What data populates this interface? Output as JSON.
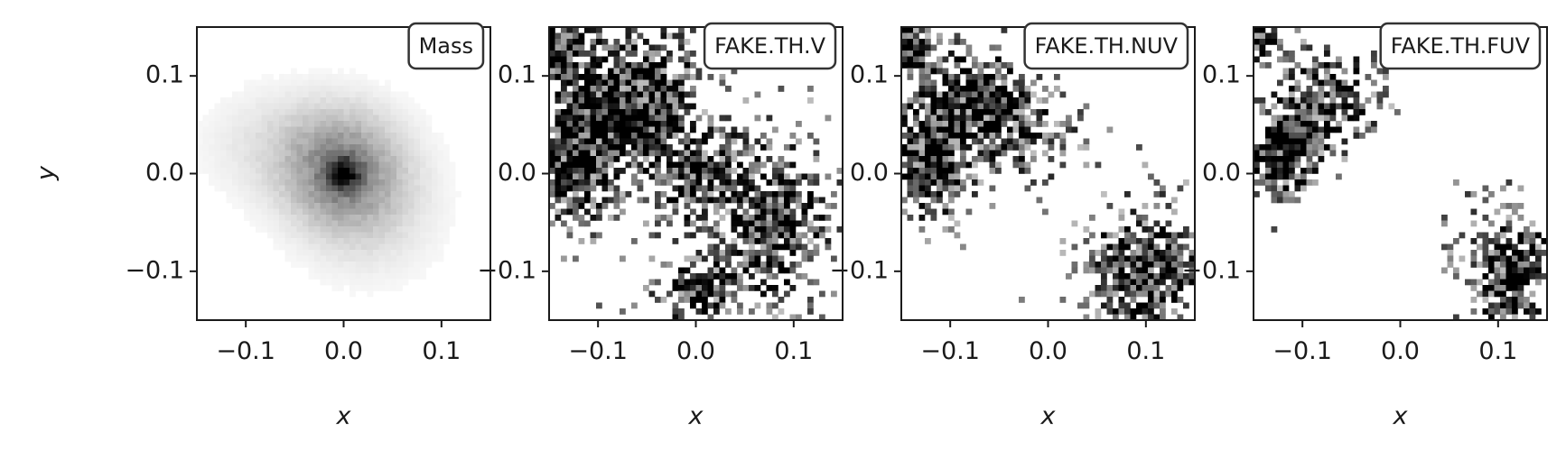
{
  "chart_data": [
    {
      "type": "heatmap",
      "title": "Mass",
      "xlabel": "x",
      "ylabel": "y",
      "xlim": [
        -0.15,
        0.15
      ],
      "ylim": [
        -0.15,
        0.15
      ],
      "xticks": [
        "−0.1",
        "0.0",
        "0.1"
      ],
      "yticks": [
        "0.1",
        "0.0",
        "−0.1"
      ],
      "xtick_values": [
        -0.1,
        0.0,
        0.1
      ],
      "ytick_values": [
        0.1,
        0.0,
        -0.1
      ],
      "colormap": "greys",
      "grid": false,
      "label_placement": "top-right",
      "blobs": [
        {
          "x": 0.0,
          "y": 0.0,
          "sx": 0.04,
          "sy": 0.04,
          "w": 0.45
        },
        {
          "x": 0.0,
          "y": 0.0,
          "sx": 0.012,
          "sy": 0.012,
          "w": 0.6
        },
        {
          "x": -0.05,
          "y": 0.03,
          "sx": 0.06,
          "sy": 0.04,
          "w": 0.15
        },
        {
          "x": 0.03,
          "y": -0.04,
          "sx": 0.05,
          "sy": 0.05,
          "w": 0.12
        }
      ],
      "peak": {
        "x": 0.0,
        "y": 0.0,
        "value": 1.0
      },
      "noise": 0.25
    },
    {
      "type": "heatmap",
      "title": "FAKE.TH.V",
      "xlabel": "x",
      "ylabel": "",
      "xlim": [
        -0.15,
        0.15
      ],
      "ylim": [
        -0.15,
        0.15
      ],
      "xticks": [
        "−0.1",
        "0.0",
        "0.1"
      ],
      "yticks": [
        "0.1",
        "0.0",
        "−0.1"
      ],
      "xtick_values": [
        -0.1,
        0.0,
        0.1
      ],
      "ytick_values": [
        0.1,
        0.0,
        -0.1
      ],
      "colormap": "greys",
      "grid": false,
      "label_placement": "top-right",
      "blobs": [
        {
          "x": -0.12,
          "y": 0.02,
          "sx": 0.03,
          "sy": 0.04,
          "w": 1.0
        },
        {
          "x": -0.06,
          "y": 0.08,
          "sx": 0.04,
          "sy": 0.04,
          "w": 0.9
        },
        {
          "x": 0.0,
          "y": 0.0,
          "sx": 0.03,
          "sy": 0.03,
          "w": 0.6
        },
        {
          "x": 0.08,
          "y": -0.05,
          "sx": 0.04,
          "sy": 0.05,
          "w": 0.7
        },
        {
          "x": 0.0,
          "y": -0.12,
          "sx": 0.03,
          "sy": 0.02,
          "w": 0.7
        },
        {
          "x": -0.14,
          "y": 0.13,
          "sx": 0.02,
          "sy": 0.02,
          "w": 0.8
        }
      ],
      "noise": 0.45
    },
    {
      "type": "heatmap",
      "title": "FAKE.TH.NUV",
      "xlabel": "x",
      "ylabel": "",
      "xlim": [
        -0.15,
        0.15
      ],
      "ylim": [
        -0.15,
        0.15
      ],
      "xticks": [
        "−0.1",
        "0.0",
        "0.1"
      ],
      "yticks": [
        "0.1",
        "0.0",
        "−0.1"
      ],
      "xtick_values": [
        -0.1,
        0.0,
        0.1
      ],
      "ytick_values": [
        0.1,
        0.0,
        -0.1
      ],
      "colormap": "greys",
      "grid": false,
      "label_placement": "top-right",
      "blobs": [
        {
          "x": -0.12,
          "y": 0.02,
          "sx": 0.025,
          "sy": 0.04,
          "w": 0.9
        },
        {
          "x": -0.07,
          "y": 0.08,
          "sx": 0.03,
          "sy": 0.03,
          "w": 0.75
        },
        {
          "x": -0.02,
          "y": 0.04,
          "sx": 0.03,
          "sy": 0.03,
          "w": 0.5
        },
        {
          "x": 0.1,
          "y": -0.1,
          "sx": 0.04,
          "sy": 0.04,
          "w": 0.7
        },
        {
          "x": -0.14,
          "y": 0.13,
          "sx": 0.02,
          "sy": 0.02,
          "w": 0.8
        }
      ],
      "noise": 0.4
    },
    {
      "type": "heatmap",
      "title": "FAKE.TH.FUV",
      "xlabel": "x",
      "ylabel": "",
      "xlim": [
        -0.15,
        0.15
      ],
      "ylim": [
        -0.15,
        0.15
      ],
      "xticks": [
        "−0.1",
        "0.0",
        "0.1"
      ],
      "yticks": [
        "0.1",
        "0.0",
        "−0.1"
      ],
      "xtick_values": [
        -0.1,
        0.0,
        0.1
      ],
      "ytick_values": [
        0.1,
        0.0,
        -0.1
      ],
      "colormap": "greys",
      "grid": false,
      "label_placement": "top-right",
      "blobs": [
        {
          "x": -0.12,
          "y": 0.02,
          "sx": 0.025,
          "sy": 0.03,
          "w": 0.85
        },
        {
          "x": -0.07,
          "y": 0.08,
          "sx": 0.03,
          "sy": 0.03,
          "w": 0.65
        },
        {
          "x": 0.11,
          "y": -0.1,
          "sx": 0.03,
          "sy": 0.04,
          "w": 0.75
        },
        {
          "x": -0.14,
          "y": 0.14,
          "sx": 0.02,
          "sy": 0.015,
          "w": 0.6
        }
      ],
      "noise": 0.35
    }
  ]
}
